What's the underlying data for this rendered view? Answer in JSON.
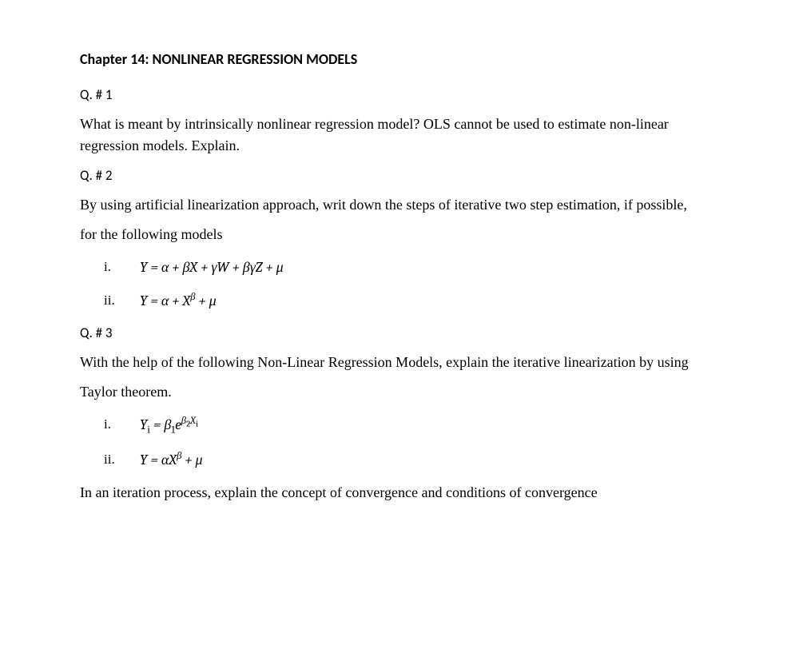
{
  "chapter_title": "Chapter 14: NONLINEAR REGRESSION MODELS",
  "q1": {
    "header": "Q. # 1",
    "body": "What is meant by intrinsically nonlinear regression model? OLS cannot be used to estimate non-linear regression models. Explain."
  },
  "q2": {
    "header": "Q. # 2",
    "body_line1": "By using artificial linearization approach, writ down the steps of iterative two step estimation, if possible,",
    "body_line2": "for the following models",
    "item1_marker": "i.",
    "item1_math": "Y  =  α +  βX + γW +  βγZ + μ",
    "item2_marker": "ii.",
    "item2_math_prefix": "Y  =  α +  X",
    "item2_math_exp": "β",
    "item2_math_suffix": " + μ"
  },
  "q3": {
    "header": "Q. # 3",
    "body_line1": "With the help of the following Non-Linear Regression Models, explain the iterative linearization by using",
    "body_line2": "Taylor theorem.",
    "item1_marker": "i.",
    "item1_Y": "Y",
    "item1_Yi": "i",
    "item1_eq": "  =  ",
    "item1_b1": "β",
    "item1_b1sub": "1",
    "item1_e": "e",
    "item1_b2": "β",
    "item1_b2sub": "2",
    "item1_x": "X",
    "item1_xi": "i",
    "item2_marker": "ii.",
    "item2_prefix": "Y  =   αX",
    "item2_exp": "β",
    "item2_suffix": "  +  μ"
  },
  "final": "In an iteration process, explain the concept of convergence and conditions of convergence"
}
